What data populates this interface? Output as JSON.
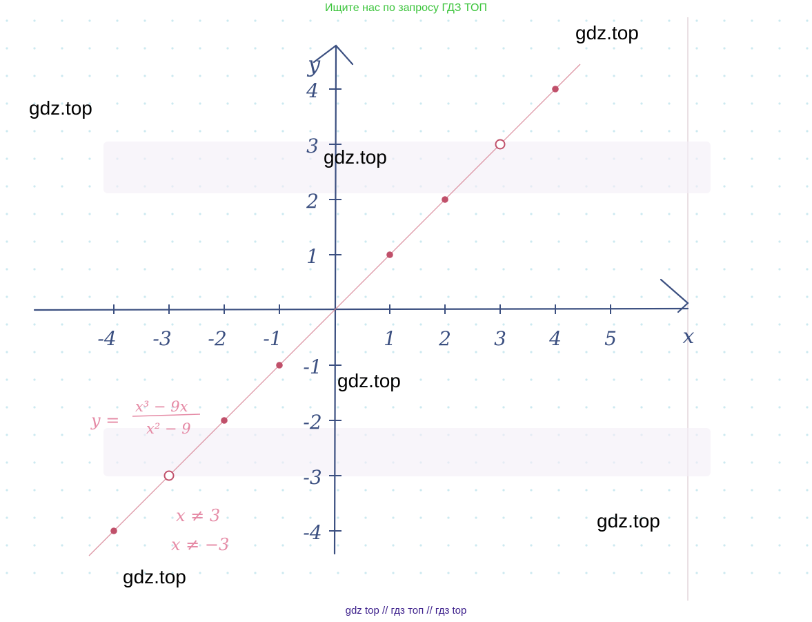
{
  "header": {
    "banner_text": "Ищите нас по запросу ГДЗ ТОП"
  },
  "footer": {
    "banner_text": "gdz top  //  гдз топ  //  гдз top"
  },
  "watermarks": [
    "gdz.top",
    "gdz.top",
    "gdz.top",
    "gdz.top",
    "gdz.top",
    "gdz.top"
  ],
  "colors": {
    "axes": "#3b4f80",
    "points": "#c0506a",
    "line": "#d98a9a",
    "grid": "#bfe3ec",
    "formula": "#e58aa5"
  },
  "chart_data": {
    "type": "line",
    "xlabel": "x",
    "ylabel": "y",
    "xlim": [
      -4,
      5
    ],
    "ylim": [
      -4,
      4
    ],
    "x_ticks": [
      "-4",
      "-3",
      "-2",
      "-1",
      "1",
      "2",
      "3",
      "4",
      "5"
    ],
    "y_ticks": [
      "4",
      "3",
      "2",
      "1",
      "-1",
      "-2",
      "-3",
      "-4"
    ],
    "series": [
      {
        "points": [
          {
            "x": -4,
            "y": -4,
            "hollow": false
          },
          {
            "x": -3,
            "y": -3,
            "hollow": true
          },
          {
            "x": -2,
            "y": -2,
            "hollow": false
          },
          {
            "x": -1,
            "y": -1,
            "hollow": false
          },
          {
            "x": 1,
            "y": 1,
            "hollow": false
          },
          {
            "x": 2,
            "y": 2,
            "hollow": false
          },
          {
            "x": 3,
            "y": 3,
            "hollow": true
          },
          {
            "x": 4,
            "y": 4,
            "hollow": false
          }
        ]
      }
    ],
    "annotations": {
      "formula_lhs": "y =",
      "formula_num": "x³ − 9x",
      "formula_den": "x² − 9",
      "condition_1": "x ≠ 3",
      "condition_2": "x ≠ −3"
    }
  }
}
